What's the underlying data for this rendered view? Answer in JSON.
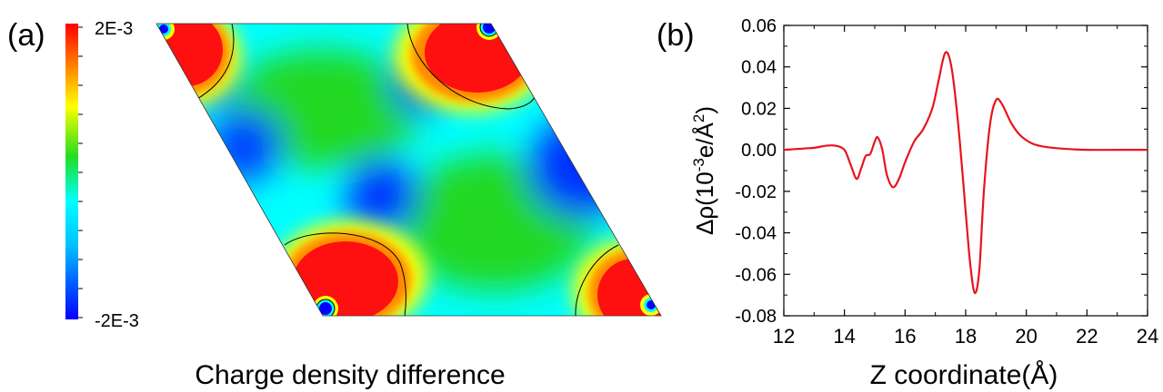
{
  "panel_a": {
    "label": "(a)",
    "colorbar_max": "2E-3",
    "colorbar_min": "-2E-3",
    "caption": "Charge density difference",
    "colormap": [
      "#0000ff",
      "#00aaff",
      "#00ffff",
      "#22dd22",
      "#ffff00",
      "#ff8800",
      "#ff0000"
    ]
  },
  "panel_b": {
    "label": "(b)",
    "xlabel": "Z coordinate(Å)",
    "ylabel_main": "Δρ(10",
    "ylabel_exp": "-3",
    "ylabel_mid": "e/Å",
    "ylabel_exp2": "2",
    "ylabel_end": ")"
  },
  "chart_data": [
    {
      "type": "heatmap",
      "title": "Charge density difference",
      "colorbar_range": [
        -0.002,
        0.002
      ],
      "colorbar_labels": [
        "2E-3",
        "-2E-3"
      ],
      "description_regions": [
        "red",
        "green",
        "cyan",
        "blue"
      ]
    },
    {
      "type": "line",
      "xlabel": "Z coordinate(Å)",
      "ylabel": "Δρ(10-3e/Å2)",
      "xlim": [
        12,
        24
      ],
      "ylim": [
        -0.08,
        0.06
      ],
      "xticks": [
        "12",
        "14",
        "16",
        "18",
        "20",
        "22",
        "24"
      ],
      "yticks": [
        "0.06",
        "0.04",
        "0.02",
        "0.00",
        "-0.02",
        "-0.04",
        "-0.06",
        "-0.08"
      ],
      "grid": false,
      "series": [
        {
          "color": "#e8141c",
          "x": [
            12.0,
            12.5,
            13.0,
            13.4,
            13.7,
            14.0,
            14.2,
            14.4,
            14.55,
            14.7,
            14.85,
            15.0,
            15.1,
            15.25,
            15.4,
            15.6,
            15.8,
            16.0,
            16.3,
            16.6,
            16.9,
            17.1,
            17.3,
            17.45,
            17.6,
            17.8,
            18.0,
            18.15,
            18.3,
            18.45,
            18.6,
            18.8,
            19.0,
            19.2,
            19.5,
            19.8,
            20.2,
            20.6,
            21.0,
            21.5,
            22.0,
            23.0,
            24.0
          ],
          "y": [
            0.0,
            0.0005,
            0.001,
            0.002,
            0.002,
            0.0,
            -0.007,
            -0.014,
            -0.009,
            -0.003,
            -0.002,
            0.004,
            0.006,
            0.0,
            -0.012,
            -0.018,
            -0.014,
            -0.006,
            0.004,
            0.01,
            0.02,
            0.033,
            0.046,
            0.045,
            0.033,
            0.005,
            -0.03,
            -0.055,
            -0.069,
            -0.058,
            -0.02,
            0.012,
            0.024,
            0.022,
            0.013,
            0.007,
            0.003,
            0.0015,
            0.0008,
            0.0003,
            0.0,
            0.0,
            0.0
          ]
        }
      ]
    }
  ]
}
